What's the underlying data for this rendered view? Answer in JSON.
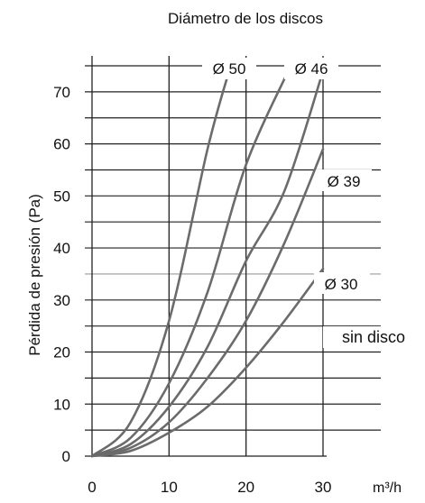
{
  "chart_data": {
    "type": "line",
    "title": "Diámetro de los discos",
    "xlabel": "m³/h",
    "ylabel": "Pérdida de presión (Pa)",
    "xlim": [
      0,
      30
    ],
    "ylim": [
      0,
      75
    ],
    "x_ticks": [
      0,
      10,
      20,
      30
    ],
    "y_ticks": [
      0,
      10,
      20,
      30,
      40,
      50,
      60,
      70
    ],
    "grid": true,
    "series": [
      {
        "name": "Ø 50",
        "x": [
          0,
          5,
          10,
          15,
          18
        ],
        "y": [
          0,
          6.5,
          26,
          59,
          75
        ]
      },
      {
        "name": "Ø 46",
        "x": [
          0,
          5,
          10,
          15,
          20,
          25.8
        ],
        "y": [
          0,
          3.5,
          14,
          31.5,
          56,
          75
        ]
      },
      {
        "name": "Ø 39",
        "x": [
          0,
          5,
          10,
          15,
          20,
          25,
          30
        ],
        "y": [
          0,
          2.3,
          9.5,
          21,
          37.5,
          51,
          74
        ]
      },
      {
        "name": "Ø 30",
        "x": [
          0,
          5,
          10,
          15,
          20,
          25,
          30
        ],
        "y": [
          0,
          1.6,
          6.5,
          15,
          26,
          41,
          59
        ]
      },
      {
        "name": "sin disco",
        "x": [
          0,
          5,
          10,
          15,
          20,
          25,
          30
        ],
        "y": [
          0,
          1.0,
          4.5,
          9.5,
          17,
          26,
          36
        ]
      }
    ]
  }
}
